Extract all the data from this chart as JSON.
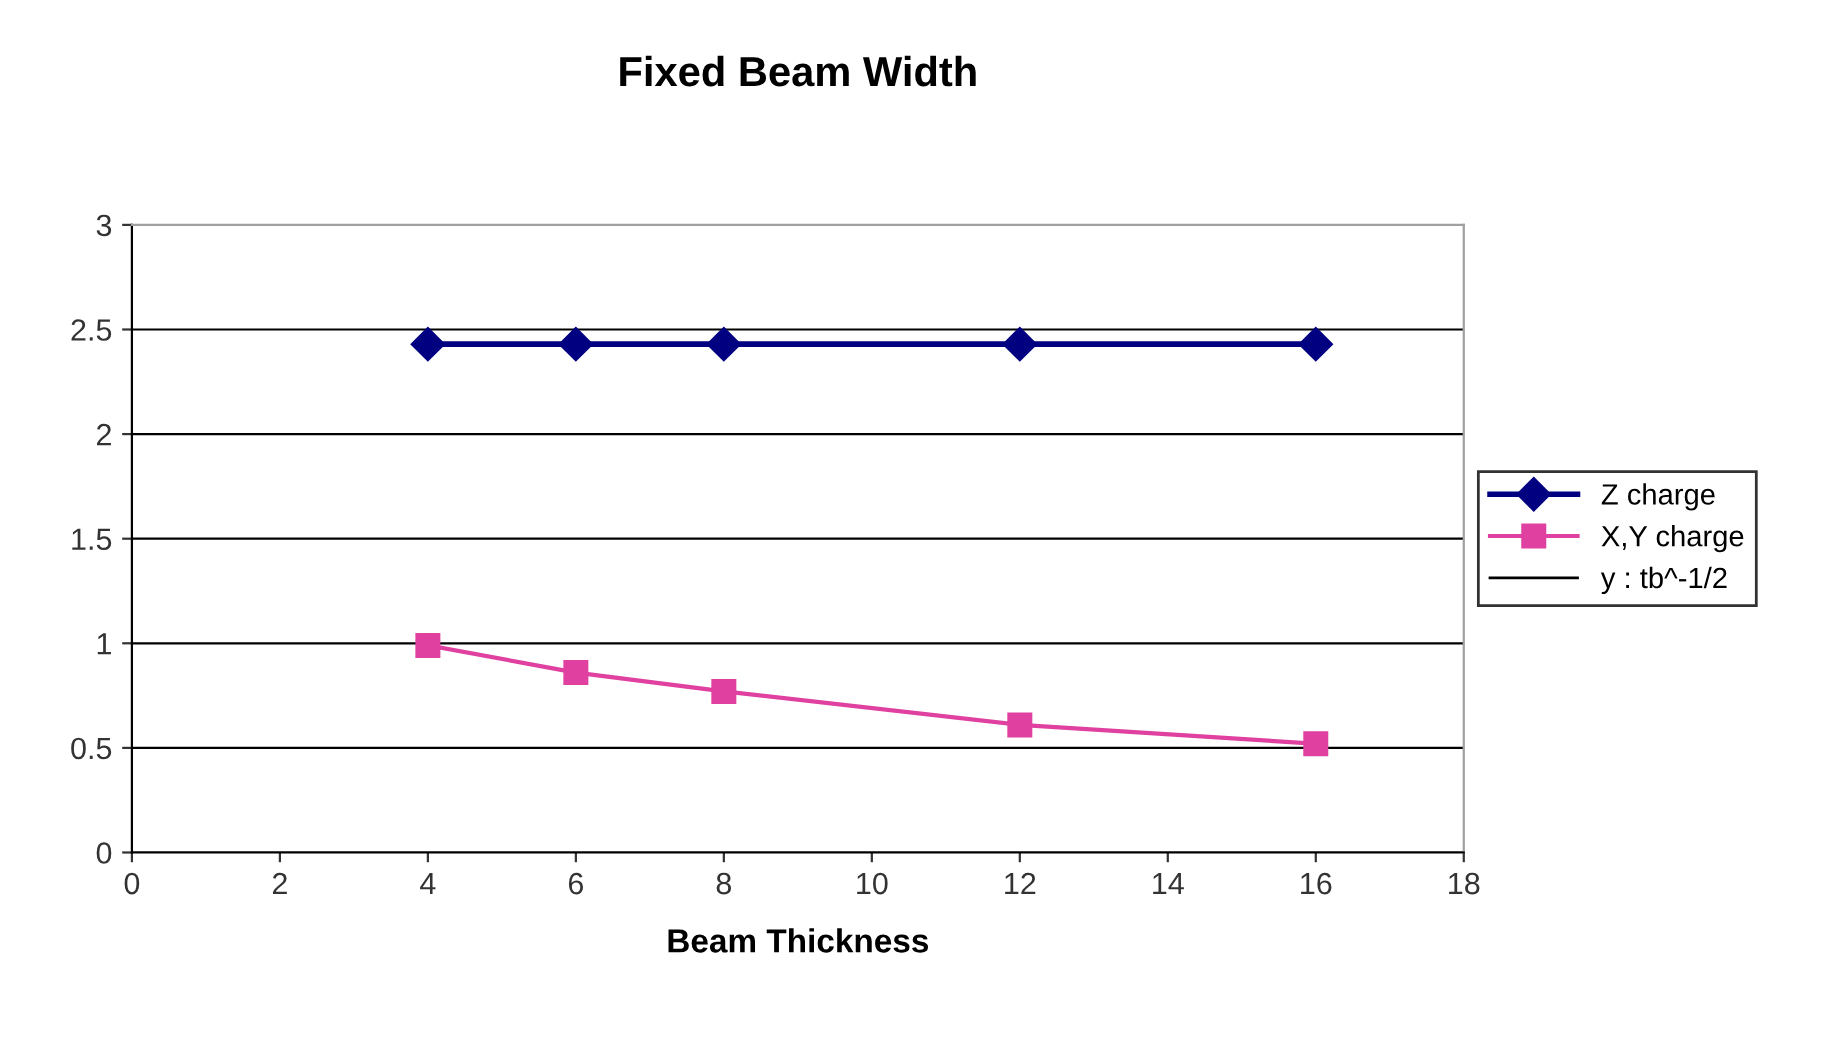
{
  "chart_data": {
    "type": "line",
    "title": "Fixed Beam Width",
    "xlabel": "Beam Thickness",
    "x": [
      4,
      6,
      8,
      12,
      16
    ],
    "series": [
      {
        "name": "Z charge",
        "color": "#000080",
        "marker": "diamond",
        "values": [
          2.43,
          2.43,
          2.43,
          2.43,
          2.43
        ]
      },
      {
        "name": "X,Y charge",
        "color": "#e040a0",
        "marker": "square",
        "values": [
          0.99,
          0.86,
          0.77,
          0.61,
          0.52
        ]
      },
      {
        "name": "y : tb^-1/2",
        "color": "#000000",
        "marker": "none",
        "values": [
          null,
          null,
          null,
          null,
          null
        ]
      }
    ],
    "xlim": [
      0,
      18
    ],
    "xticks": [
      0,
      2,
      4,
      6,
      8,
      10,
      12,
      14,
      16,
      18
    ],
    "ylim": [
      0,
      3
    ],
    "yticks": [
      0,
      0.5,
      1,
      1.5,
      2,
      2.5,
      3
    ],
    "grid": "y",
    "legend": "right"
  }
}
